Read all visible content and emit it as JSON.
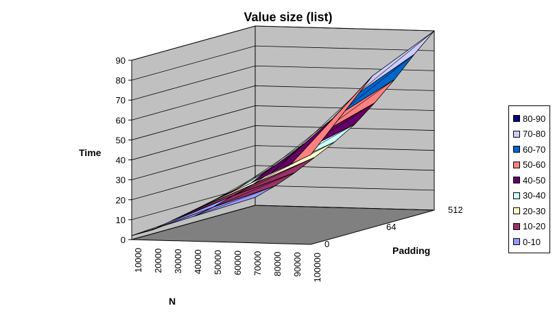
{
  "chart_data": {
    "type": "surface",
    "title": "Value size (list)",
    "ylabel": "Time",
    "xlabel": "N",
    "zlabel": "Padding",
    "zlim": [
      0,
      90
    ],
    "z_ticks": [
      0,
      10,
      20,
      30,
      40,
      50,
      60,
      70,
      80,
      90
    ],
    "n_ticks": [
      "10000",
      "20000",
      "30000",
      "40000",
      "50000",
      "60000",
      "70000",
      "80000",
      "90000",
      "100000"
    ],
    "padding_ticks": [
      "0",
      "64",
      "512"
    ],
    "legend_placement": "right",
    "legend": [
      {
        "label": "80-90",
        "color": "#000080"
      },
      {
        "label": "70-80",
        "color": "#ccccff"
      },
      {
        "label": "60-70",
        "color": "#0066cc"
      },
      {
        "label": "50-60",
        "color": "#ff8080"
      },
      {
        "label": "40-50",
        "color": "#660066"
      },
      {
        "label": "30-40",
        "color": "#ccffff"
      },
      {
        "label": "20-30",
        "color": "#ffffcc"
      },
      {
        "label": "10-20",
        "color": "#993366"
      },
      {
        "label": "0-10",
        "color": "#9999ff"
      }
    ],
    "series": [
      {
        "name": "0",
        "values": [
          2,
          5,
          10,
          15,
          20,
          25,
          30,
          35,
          40,
          45
        ]
      },
      {
        "name": "64",
        "values": [
          3,
          8,
          14,
          20,
          27,
          35,
          44,
          54,
          65,
          76
        ]
      },
      {
        "name": "512",
        "values": [
          4,
          10,
          17,
          25,
          33,
          42,
          53,
          65,
          78,
          90
        ]
      }
    ]
  }
}
